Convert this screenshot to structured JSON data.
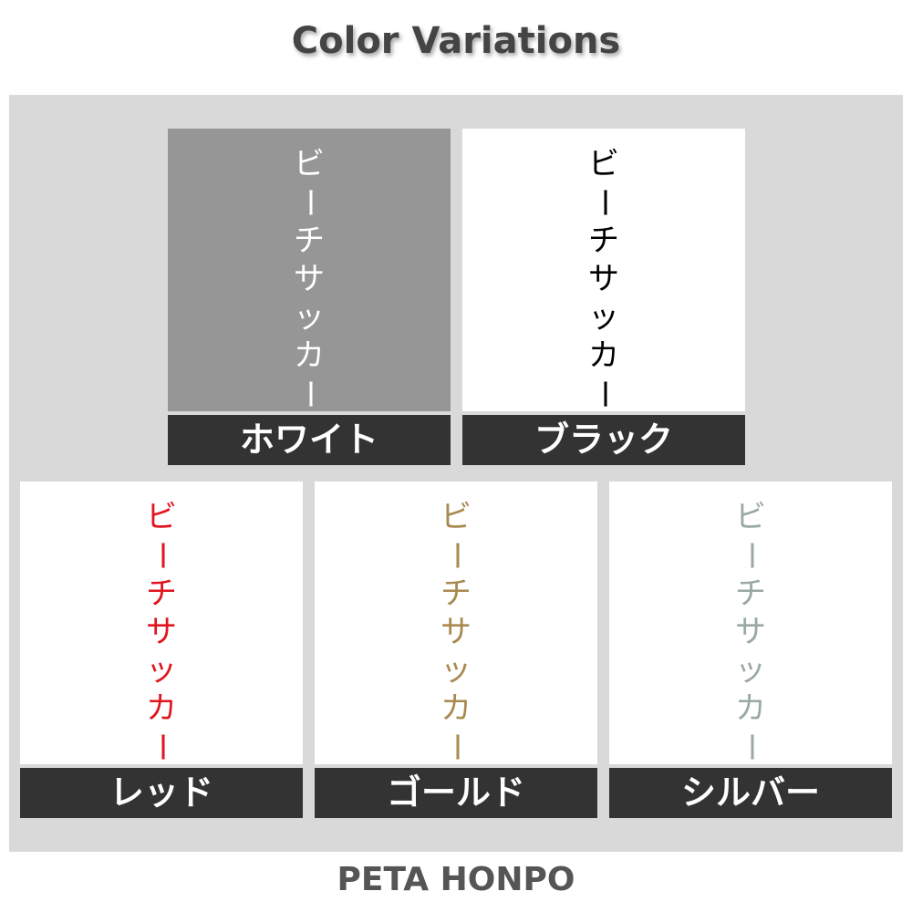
{
  "title": "Color Variations",
  "footer": "PETA HONPO",
  "product_text": "ビーチサッカー",
  "variations": [
    {
      "label": "ホワイト",
      "text_color": "#ffffff",
      "background": "#969696"
    },
    {
      "label": "ブラック",
      "text_color": "#000000",
      "background": "#ffffff"
    },
    {
      "label": "レッド",
      "text_color": "#e0141e",
      "background": "#ffffff"
    },
    {
      "label": "ゴールド",
      "text_color": "#a88a50",
      "background": "#ffffff"
    },
    {
      "label": "シルバー",
      "text_color": "#9aa8a4",
      "background": "#ffffff"
    }
  ]
}
